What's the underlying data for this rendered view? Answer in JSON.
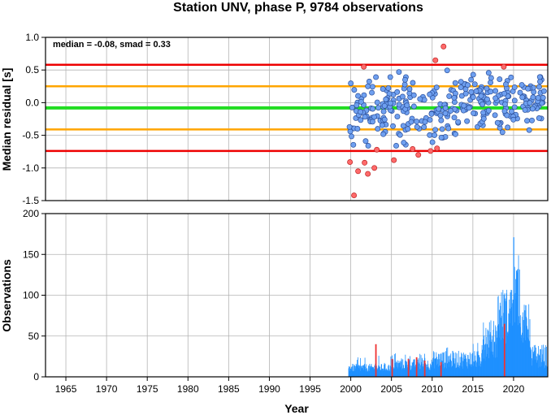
{
  "chart_data": {
    "title": "Station UNV, phase P, 9784 observations",
    "xlabel": "Year",
    "xlim": [
      1962.5,
      2024.2
    ],
    "x_ticks": [
      1965,
      1970,
      1975,
      1980,
      1985,
      1990,
      1995,
      2000,
      2005,
      2010,
      2015,
      2020
    ],
    "colors": {
      "median": "#22dd22",
      "one_smad": "#ffa500",
      "two_smad": "#ee0000",
      "point_in": "#6fa0f0",
      "point_out": "#ff6a6a",
      "bars": "#1e90ff",
      "bars_highlight": "#ee3333"
    },
    "panels": [
      {
        "type": "scatter",
        "ylabel": "Median residual [s]",
        "ylim": [
          -1.5,
          1.0
        ],
        "y_ticks": [
          1.0,
          0.5,
          0.0,
          -0.5,
          -1.0,
          -1.5
        ],
        "y_tick_labels": [
          "1.0",
          "0.5",
          "0.0",
          "-0.5",
          "-1.0",
          "-1.5"
        ],
        "annotation": "median = -0.08, smad = 0.33",
        "median": -0.08,
        "smad": 0.33,
        "bands": {
          "one_smad": [
            -0.41,
            0.25
          ],
          "two_smad": [
            -0.74,
            0.58
          ]
        },
        "outliers": [
          {
            "x": 1999.9,
            "y": -0.91
          },
          {
            "x": 2000.4,
            "y": -1.42
          },
          {
            "x": 2000.9,
            "y": -1.05
          },
          {
            "x": 2001.6,
            "y": 0.55
          },
          {
            "x": 2001.7,
            "y": -0.92
          },
          {
            "x": 2002.1,
            "y": -1.09
          },
          {
            "x": 2002.9,
            "y": -1.0
          },
          {
            "x": 2003.2,
            "y": -0.72
          },
          {
            "x": 2005.3,
            "y": -0.88
          },
          {
            "x": 2007.6,
            "y": -0.71
          },
          {
            "x": 2008.3,
            "y": -0.8
          },
          {
            "x": 2009.8,
            "y": -0.74
          },
          {
            "x": 2010.4,
            "y": 0.65
          },
          {
            "x": 2010.6,
            "y": -0.7
          },
          {
            "x": 2011.4,
            "y": 0.86
          },
          {
            "x": 2018.8,
            "y": 0.55
          }
        ]
      },
      {
        "type": "bar",
        "ylabel": "Observations",
        "ylim": [
          0,
          200
        ],
        "y_ticks": [
          0,
          50,
          100,
          150,
          200
        ],
        "y_tick_labels": [
          "0",
          "50",
          "100",
          "150",
          "200"
        ],
        "peak": {
          "x": 2020.0,
          "y": 171
        },
        "highlight_bars": [
          {
            "x": 2003.0,
            "y": 40
          },
          {
            "x": 2005.0,
            "y": 22
          },
          {
            "x": 2007.0,
            "y": 22
          },
          {
            "x": 2008.0,
            "y": 24
          },
          {
            "x": 2009.0,
            "y": 20
          },
          {
            "x": 2011.0,
            "y": 18
          },
          {
            "x": 2018.8,
            "y": 65
          }
        ]
      }
    ]
  }
}
